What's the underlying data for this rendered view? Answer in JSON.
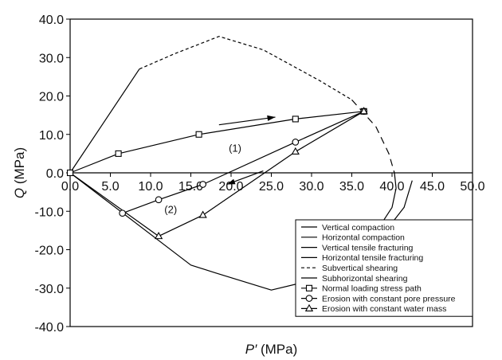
{
  "chart_data": {
    "type": "line",
    "xlabel": {
      "italic": "P′",
      "rest": " (MPa)"
    },
    "ylabel": {
      "italic": "Q",
      "rest": " (MPa)"
    },
    "xlim": [
      0,
      50
    ],
    "ylim": [
      -40,
      40
    ],
    "x_ticks": [
      "0.0",
      "5.0",
      "10.0",
      "15.0",
      "20.0",
      "25.0",
      "30.0",
      "35.0",
      "40.0",
      "45.0",
      "50.0"
    ],
    "y_ticks": [
      "40.0",
      "30.0",
      "20.0",
      "10.0",
      "0.0",
      "-10.0",
      "-20.0",
      "-30.0",
      "-40.0"
    ],
    "grid": false,
    "legend_position": "bottom-right",
    "series": [
      {
        "name": "Vertical compaction",
        "style": "solid",
        "marker": "none",
        "points": [
          [
            0,
            0
          ],
          [
            8.6,
            27
          ]
        ]
      },
      {
        "name": "Horizontal compaction",
        "style": "solid",
        "marker": "none",
        "points": [
          [
            0,
            0
          ],
          [
            15,
            -24
          ],
          [
            18,
            -26
          ],
          [
            25,
            -30.5
          ],
          [
            29,
            -28.5
          ]
        ]
      },
      {
        "name": "Vertical tensile fracturing",
        "style": "solid",
        "marker": "none",
        "points": []
      },
      {
        "name": "Horizontal tensile fracturing",
        "style": "solid",
        "marker": "none",
        "points": []
      },
      {
        "name": "Subvertical shearing",
        "style": "dash-short",
        "marker": "none",
        "points": [
          [
            8.6,
            27
          ],
          [
            13,
            31
          ],
          [
            18.5,
            35.5
          ],
          [
            24,
            32
          ],
          [
            31,
            24
          ],
          [
            35,
            19
          ]
        ]
      },
      {
        "name": "Subhorizontal shearing",
        "style": "solid",
        "marker": "none",
        "points": [
          [
            37.5,
            -28
          ],
          [
            38.5,
            -21
          ],
          [
            40,
            -13
          ],
          [
            41.5,
            -9
          ],
          [
            42.5,
            -2
          ]
        ]
      },
      {
        "name": "Normal loading stress path",
        "style": "solid",
        "marker": "square",
        "points": [
          [
            0,
            0
          ],
          [
            6,
            5
          ],
          [
            16,
            10
          ],
          [
            28,
            14
          ],
          [
            36.5,
            16
          ]
        ]
      },
      {
        "name": "Erosion with constant pore pressure",
        "style": "solid",
        "marker": "circle",
        "points": [
          [
            6.5,
            -10.5
          ],
          [
            11,
            -7
          ],
          [
            16.5,
            -3
          ],
          [
            28,
            8
          ],
          [
            36.5,
            16
          ]
        ]
      },
      {
        "name": "Erosion with constant water mass",
        "style": "solid",
        "marker": "triangle",
        "points": [
          [
            11,
            -16.5
          ],
          [
            16.5,
            -11
          ],
          [
            28,
            5.5
          ],
          [
            36.5,
            16
          ]
        ]
      }
    ],
    "extra_curves": [
      {
        "style": "dash-long",
        "points": [
          [
            35,
            19
          ],
          [
            38,
            12
          ],
          [
            39.6,
            5
          ],
          [
            40.3,
            0
          ]
        ]
      },
      {
        "style": "solid",
        "points": [
          [
            0,
            0
          ],
          [
            11,
            -16.5
          ]
        ]
      },
      {
        "style": "solid",
        "points": [
          [
            40.3,
            0
          ],
          [
            40.5,
            -4
          ],
          [
            40,
            -9
          ],
          [
            38.5,
            -13.8
          ],
          [
            37,
            -15
          ]
        ]
      }
    ],
    "annotations": [
      {
        "text": "(1)",
        "x": 20.5,
        "y": 5.5
      },
      {
        "text": "(2)",
        "x": 12.5,
        "y": -10.5
      }
    ],
    "arrows": [
      {
        "from": [
          18.5,
          12.5
        ],
        "to": [
          25.5,
          14.5
        ]
      },
      {
        "from": [
          24,
          0.5
        ],
        "to": [
          19.5,
          -3
        ]
      }
    ]
  }
}
